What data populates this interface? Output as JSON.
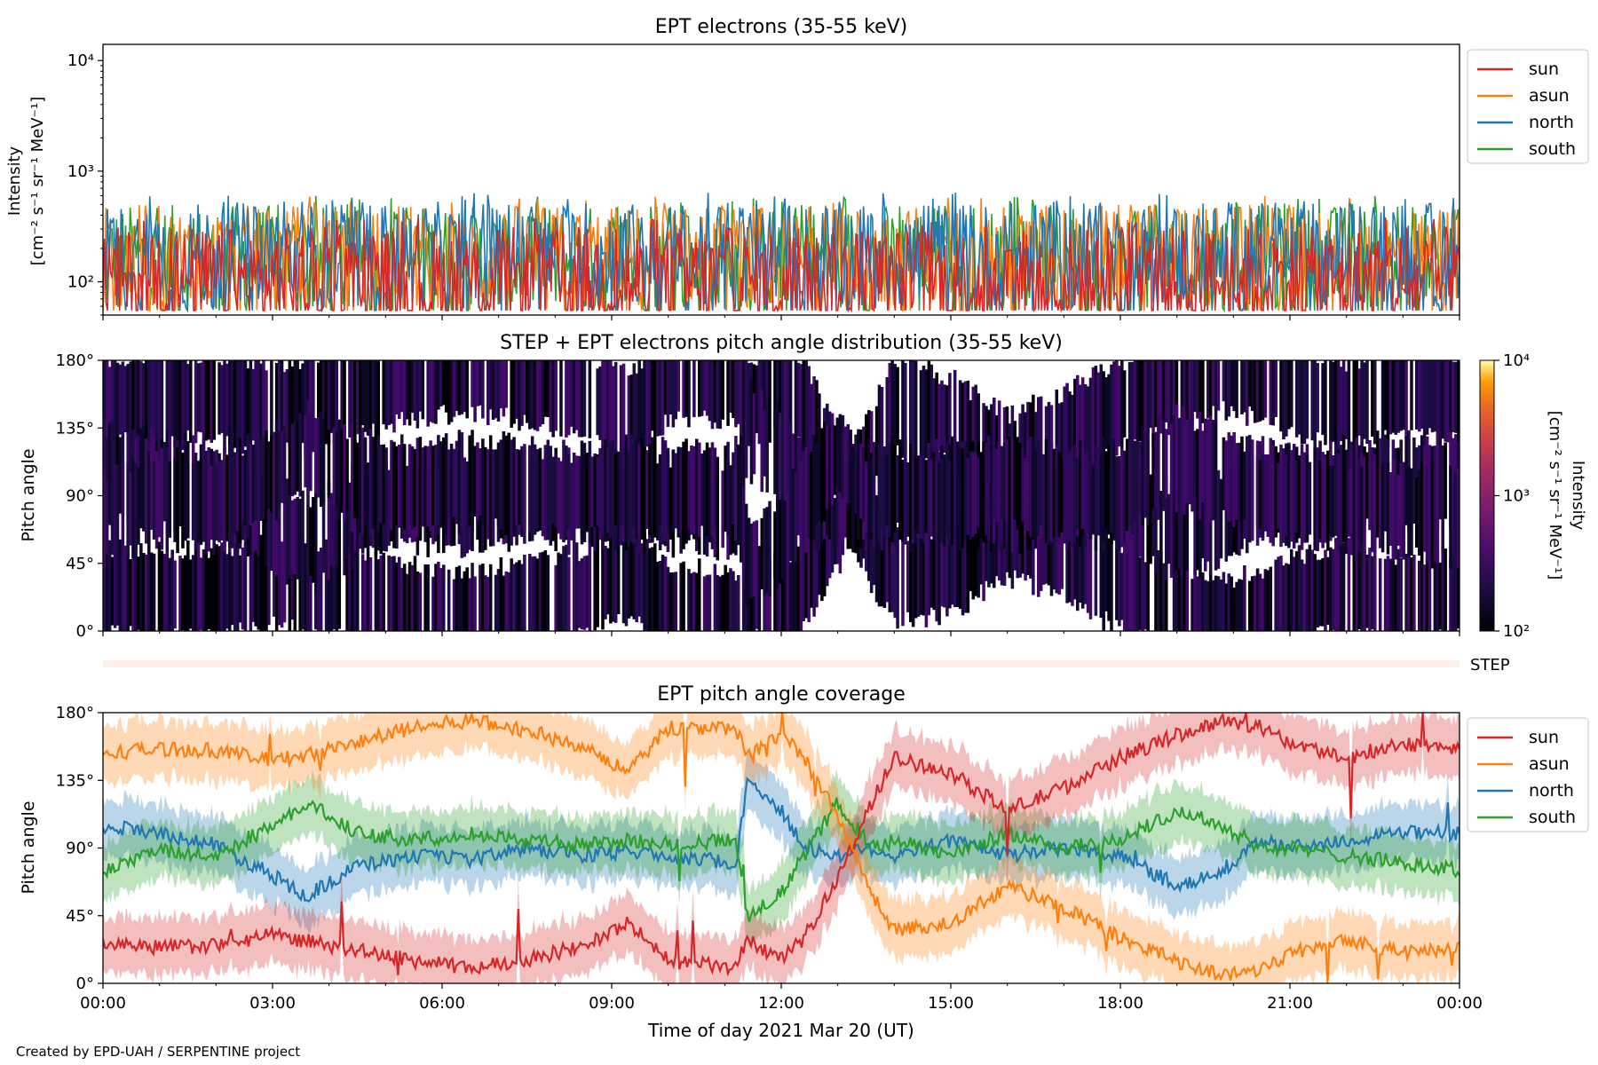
{
  "figure": {
    "credit": "Created by EPD-UAH / SERPENTINE project"
  },
  "chart_data": [
    {
      "type": "line",
      "title": "EPT electrons (35-55 keV)",
      "ylabel_line1": "Intensity",
      "ylabel_line2": "[cm⁻² s⁻¹ sr⁻¹ MeV⁻¹]",
      "yscale": "log",
      "ylim": [
        50,
        14000
      ],
      "ytick_labels": [
        "10²",
        "10³",
        "10⁴"
      ],
      "xlim_hours": [
        0,
        24
      ],
      "legend_placement": "outside-right",
      "series": [
        {
          "name": "sun",
          "color": "#d62728",
          "baseline": 95
        },
        {
          "name": "asun",
          "color": "#ff7f0e",
          "baseline": 150
        },
        {
          "name": "north",
          "color": "#1f77b4",
          "baseline": 160
        },
        {
          "name": "south",
          "color": "#2ca02c",
          "baseline": 150
        }
      ]
    },
    {
      "type": "heatmap",
      "title": "STEP + EPT electrons pitch angle distribution (35-55 keV)",
      "ylabel": "Pitch angle",
      "ylim": [
        0,
        180
      ],
      "ytick_labels": [
        "0°",
        "45°",
        "90°",
        "135°",
        "180°"
      ],
      "colorbar_label_line1": "Intensity",
      "colorbar_label_line2": "[cm⁻² s⁻¹ sr⁻¹ MeV⁻¹]",
      "colorbar_scale": "log",
      "colorbar_range": [
        100,
        10000
      ],
      "colorbar_tick_labels": [
        "10²",
        "10³",
        "10⁴"
      ],
      "strip_label": "STEP"
    },
    {
      "type": "line",
      "title": "EPT pitch angle coverage",
      "ylabel": "Pitch angle",
      "xlabel": "Time of day 2021 Mar 20 (UT)",
      "ylim": [
        0,
        180
      ],
      "ytick_labels": [
        "0°",
        "45°",
        "90°",
        "135°",
        "180°"
      ],
      "xtick_labels": [
        "00:00",
        "03:00",
        "06:00",
        "09:00",
        "12:00",
        "15:00",
        "18:00",
        "21:00",
        "00:00"
      ],
      "legend_placement": "outside-right",
      "series": [
        {
          "name": "sun",
          "color": "#d62728",
          "hours": [
            0,
            1,
            2,
            3,
            3.6,
            4.5,
            5.5,
            6.5,
            7.5,
            8.5,
            9.3,
            10,
            11.2,
            11.4,
            12,
            12.4,
            13,
            13.6,
            14,
            15,
            16,
            17,
            18,
            19,
            19.8,
            20.5,
            21,
            22,
            23,
            24
          ],
          "values": [
            27,
            24,
            25,
            32,
            28,
            22,
            15,
            10,
            16,
            25,
            40,
            15,
            10,
            30,
            15,
            30,
            70,
            120,
            150,
            140,
            115,
            130,
            150,
            165,
            175,
            170,
            160,
            150,
            160,
            155
          ]
        },
        {
          "name": "asun",
          "color": "#ff7f0e",
          "hours": [
            0,
            1,
            2,
            3,
            3.6,
            4.5,
            5.5,
            6.5,
            7.5,
            8.5,
            9.3,
            10,
            11.2,
            11.4,
            12,
            12.4,
            13,
            13.6,
            14,
            15,
            16,
            17,
            18,
            19,
            19.8,
            20.5,
            21,
            22,
            23,
            24
          ],
          "values": [
            153,
            156,
            155,
            148,
            152,
            160,
            170,
            175,
            168,
            158,
            140,
            170,
            170,
            150,
            165,
            150,
            110,
            60,
            35,
            40,
            65,
            50,
            30,
            15,
            5,
            10,
            20,
            30,
            20,
            25
          ]
        },
        {
          "name": "north",
          "color": "#1f77b4",
          "hours": [
            0,
            1,
            2,
            3,
            3.6,
            4.5,
            5.5,
            6.5,
            7.5,
            8.5,
            9.3,
            10,
            11.2,
            11.4,
            12,
            12.4,
            13,
            13.6,
            14,
            15,
            16,
            17,
            18,
            19,
            19.8,
            20.5,
            21,
            22,
            23,
            24
          ],
          "values": [
            105,
            100,
            92,
            72,
            58,
            78,
            85,
            82,
            90,
            85,
            88,
            85,
            80,
            135,
            115,
            90,
            85,
            90,
            85,
            95,
            85,
            90,
            85,
            65,
            75,
            95,
            90,
            95,
            100,
            100
          ]
        },
        {
          "name": "south",
          "color": "#2ca02c",
          "hours": [
            0,
            1,
            2,
            3,
            3.6,
            4.5,
            5.5,
            6.5,
            7.5,
            8.5,
            9.3,
            10,
            11.2,
            11.4,
            12,
            12.4,
            13,
            13.6,
            14,
            15,
            16,
            17,
            18,
            19,
            19.8,
            20.5,
            21,
            22,
            23,
            24
          ],
          "values": [
            75,
            88,
            85,
            105,
            120,
            100,
            95,
            100,
            95,
            92,
            95,
            93,
            95,
            45,
            60,
            85,
            120,
            90,
            95,
            85,
            100,
            90,
            95,
            115,
            105,
            90,
            90,
            85,
            80,
            75
          ]
        }
      ]
    }
  ]
}
